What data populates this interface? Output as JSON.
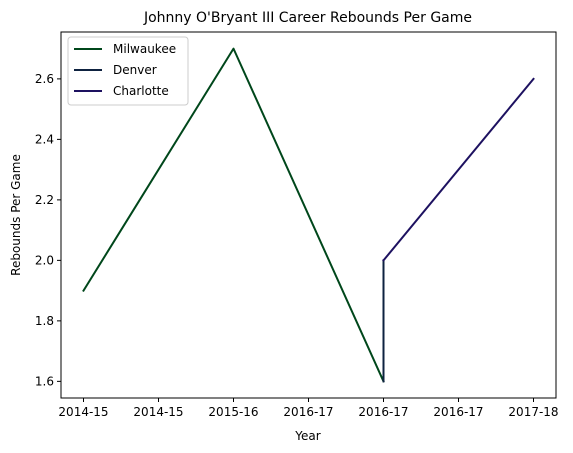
{
  "chart_data": {
    "type": "line",
    "title": "Johnny O'Bryant III Career Rebounds Per Game",
    "xlabel": "Year",
    "ylabel": "Rebounds Per Game",
    "x_tick_labels": [
      "2014-15",
      "2014-15",
      "2015-16",
      "2016-17",
      "2016-17",
      "2016-17",
      "2017-18"
    ],
    "x_tick_values": [
      0,
      0.5,
      1,
      1.5,
      2,
      2.5,
      3
    ],
    "y_ticks": [
      1.6,
      1.8,
      2.0,
      2.2,
      2.4,
      2.6
    ],
    "y_tick_labels": [
      "1.6",
      "1.8",
      "2.0",
      "2.2",
      "2.4",
      "2.6"
    ],
    "xlim": [
      -0.15,
      3.15
    ],
    "ylim": [
      1.545,
      2.755
    ],
    "legend_position": "top-left",
    "grid": false,
    "series": [
      {
        "name": "Milwaukee",
        "color": "#00471b",
        "x": [
          0,
          1,
          2
        ],
        "y": [
          1.9,
          2.7,
          1.6
        ]
      },
      {
        "name": "Denver",
        "color": "#0e2240",
        "x": [
          2,
          2
        ],
        "y": [
          1.6,
          2.0
        ]
      },
      {
        "name": "Charlotte",
        "color": "#1d1160",
        "x": [
          2,
          3
        ],
        "y": [
          2.0,
          2.6
        ]
      }
    ]
  }
}
